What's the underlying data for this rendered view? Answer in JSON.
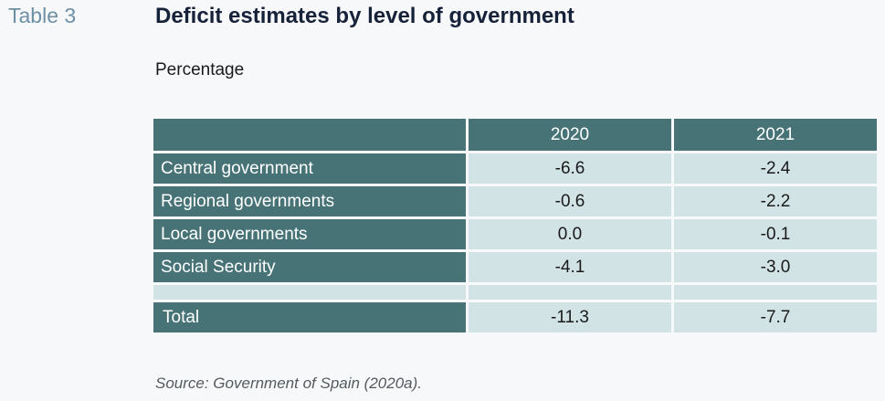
{
  "table_label": "Table 3",
  "title": "Deficit estimates by level of government",
  "subtitle": "Percentage",
  "table": {
    "columns": [
      "",
      "2020",
      "2021"
    ],
    "rows": [
      {
        "label": "Central government",
        "y2020": "-6.6",
        "y2021": "-2.4"
      },
      {
        "label": "Regional governments",
        "y2020": "-0.6",
        "y2021": "-2.2"
      },
      {
        "label": "Local governments",
        "y2020": "0.0",
        "y2021": "-0.1"
      },
      {
        "label": "Social Security",
        "y2020": "-4.1",
        "y2021": "-3.0"
      }
    ],
    "total": {
      "label": "Total",
      "y2020": "-11.3",
      "y2021": "-7.7"
    }
  },
  "source": "Source: Government of Spain (2020a).",
  "colors": {
    "header_bg": "#477377",
    "cell_bg": "#d1e3e5",
    "title": "#16213a",
    "table_label": "#6d8fa6"
  }
}
